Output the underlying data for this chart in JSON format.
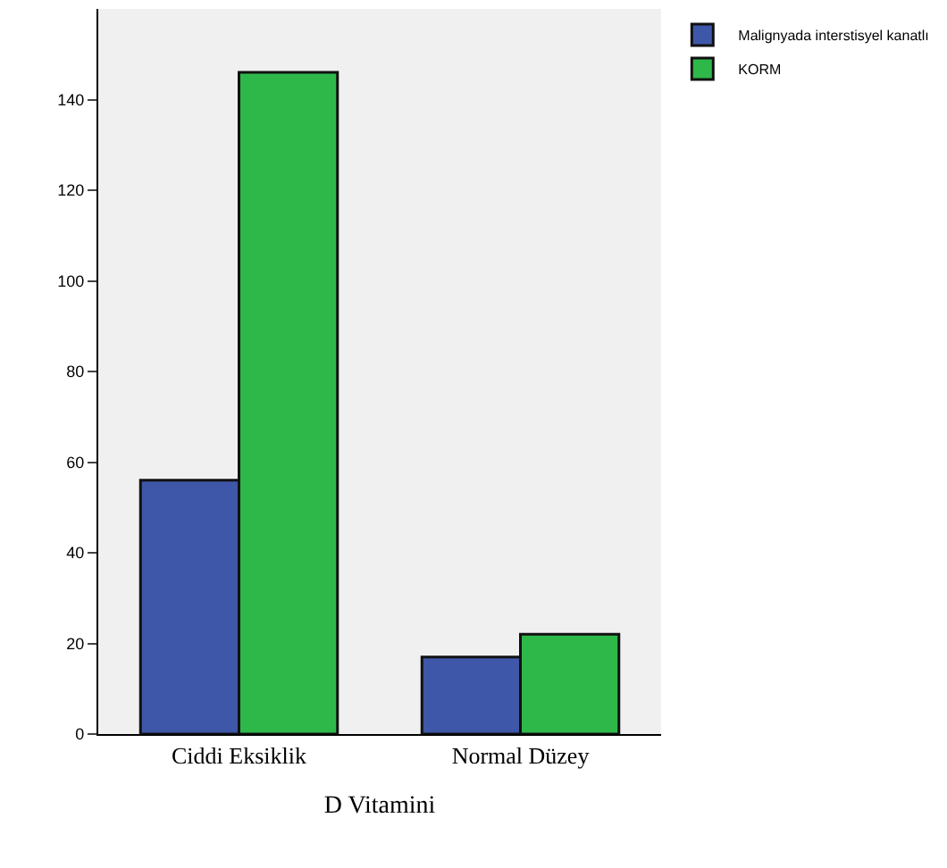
{
  "chart_data": {
    "type": "bar",
    "xlabel": "D Vitamini",
    "categories": [
      "Ciddi Eksiklik",
      "Normal Düzey"
    ],
    "series": [
      {
        "name": "Malignyada interstisyel kanatlı",
        "color": "#3f57a8",
        "values": [
          56,
          17
        ]
      },
      {
        "name": "KORM",
        "color": "#2fb84a",
        "values": [
          146,
          22
        ]
      }
    ],
    "ylim": [
      0,
      160
    ],
    "yticks": [
      0,
      20,
      40,
      60,
      80,
      100,
      120,
      140
    ],
    "grid": false,
    "legend": "top right"
  }
}
